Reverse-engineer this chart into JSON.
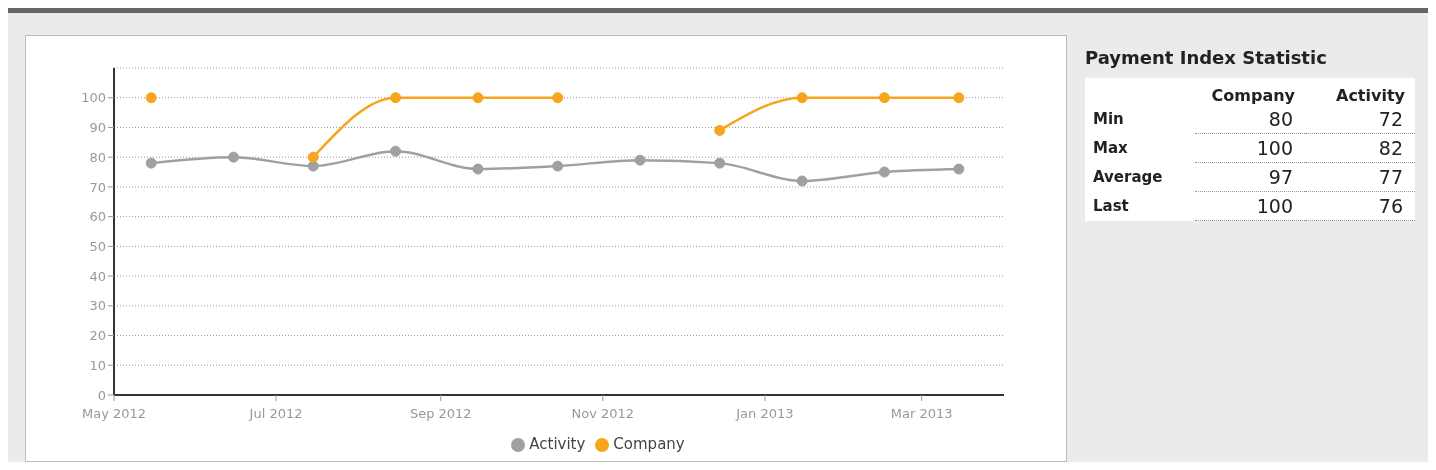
{
  "chart_data": [
    {
      "type": "line",
      "x": [
        "2012-05-15",
        "2012-06-15",
        "2012-07-15",
        "2012-08-15",
        "2012-09-15",
        "2012-10-15",
        "2012-11-15",
        "2012-12-15",
        "2013-01-15",
        "2013-02-15",
        "2013-03-15"
      ],
      "series": [
        {
          "name": "Activity",
          "color": "#a0a0a0",
          "values": [
            78,
            80,
            77,
            82,
            76,
            77,
            79,
            78,
            72,
            75,
            76
          ]
        },
        {
          "name": "Company",
          "color": "#f7a51c",
          "values": [
            100,
            null,
            80,
            100,
            100,
            100,
            null,
            89,
            100,
            100,
            100
          ]
        }
      ],
      "xlim": [
        "2012-05-01",
        "2013-04-01"
      ],
      "xticks": [
        {
          "value": "2012-05",
          "label": "May 2012"
        },
        {
          "value": "2012-07",
          "label": "Jul 2012"
        },
        {
          "value": "2012-09",
          "label": "Sep 2012"
        },
        {
          "value": "2012-11",
          "label": "Nov 2012"
        },
        {
          "value": "2013-01",
          "label": "Jan 2013"
        },
        {
          "value": "2013-03",
          "label": "Mar 2013"
        }
      ],
      "ylim": [
        0,
        110
      ],
      "yticks": [
        0,
        10,
        20,
        30,
        40,
        50,
        60,
        70,
        80,
        90,
        100
      ],
      "grid": "y",
      "legend": "bottom",
      "marker": "circle",
      "line_style": "solid"
    },
    {
      "type": "heatmap",
      "title": "Payment Index Statistic",
      "categories": [
        "Company",
        "Activity"
      ],
      "y_categories": [
        "Min",
        "Max",
        "Average",
        "Last"
      ],
      "cells": [
        [
          80,
          72
        ],
        [
          100,
          82
        ],
        [
          97,
          77
        ],
        [
          100,
          76
        ]
      ],
      "data_labels": true
    }
  ]
}
